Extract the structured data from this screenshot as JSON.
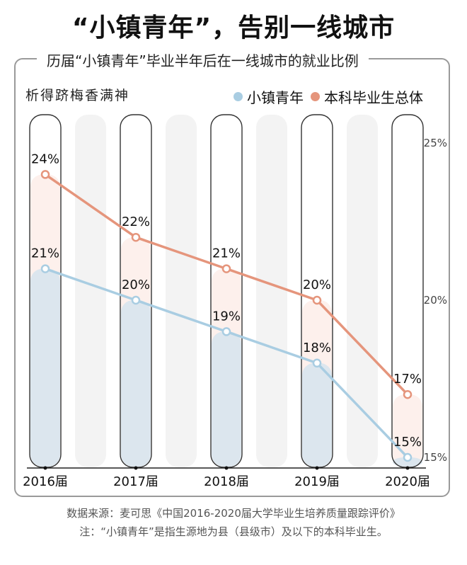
{
  "title": "“小镇青年”，告别一线城市",
  "subtitle": "历届“小镇青年”毕业半年后在一线城市的就业比例",
  "watermark": "析得跻梅香满神",
  "colors": {
    "small_town": "#a9cde2",
    "all": "#e5957c",
    "bar_fill_small_town": "#dce6ee",
    "bar_fill_all": "#fdf0ec"
  },
  "chart_data": {
    "type": "line",
    "categories": [
      "2016届",
      "2017届",
      "2018届",
      "2019届",
      "2020届"
    ],
    "series": [
      {
        "name": "小镇青年",
        "values": [
          21,
          20,
          19,
          18,
          15
        ],
        "labels": [
          "21%",
          "20%",
          "19%",
          "18%",
          "15%"
        ]
      },
      {
        "name": "本科毕业生总体",
        "values": [
          24,
          22,
          21,
          20,
          17
        ],
        "labels": [
          "24%",
          "22%",
          "21%",
          "20%",
          "17%"
        ]
      }
    ],
    "ylim": [
      15,
      25
    ],
    "yticks": [
      15,
      20,
      25
    ],
    "ytick_labels": [
      "15%",
      "20%",
      "25%"
    ],
    "legend": "top-right"
  },
  "footer": {
    "source": "数据来源：麦可思《中国2016-2020届大学毕业生培养质量跟踪评价》",
    "note": "注：“小镇青年”是指生源地为县（县级市）及以下的本科毕业生。"
  }
}
